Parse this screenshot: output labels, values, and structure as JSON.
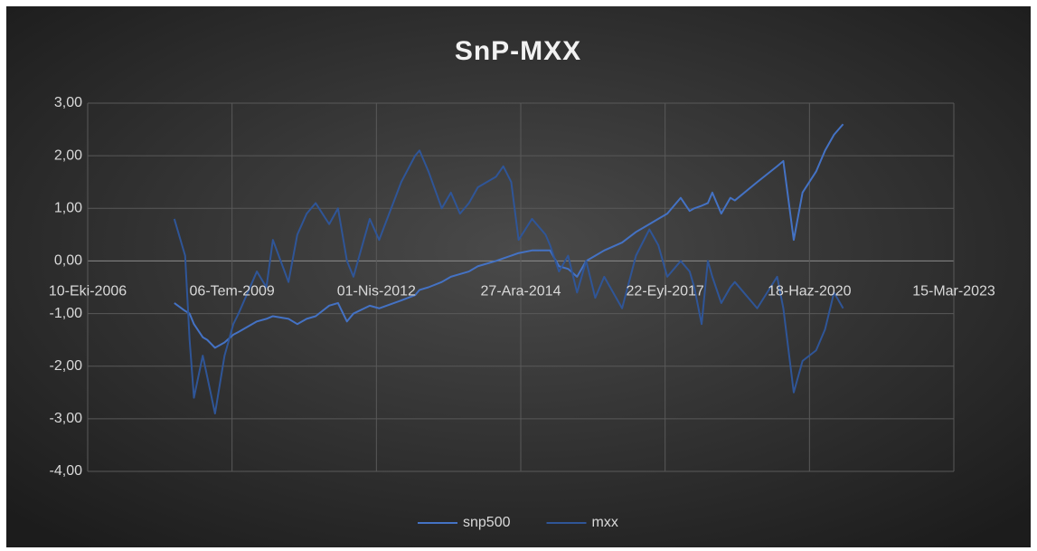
{
  "chart_data": {
    "type": "line",
    "title": "SnP-MXX",
    "x": [
      "2008-06-01",
      "2008-08-15",
      "2008-09-15",
      "2008-10-15",
      "2008-12-15",
      "2009-01-15",
      "2009-03-10",
      "2009-05-15",
      "2009-07-15",
      "2009-08-20",
      "2009-12-25",
      "2010-03-01",
      "2010-04-15",
      "2010-08-01",
      "2010-10-01",
      "2010-12-05",
      "2011-02-05",
      "2011-05-10",
      "2011-07-10",
      "2011-09-10",
      "2011-10-25",
      "2012-02-15",
      "2012-04-20",
      "2012-09-20",
      "2012-12-25",
      "2013-01-25",
      "2013-03-28",
      "2013-06-28",
      "2013-08-30",
      "2013-11-01",
      "2014-01-02",
      "2014-03-05",
      "2014-07-08",
      "2014-08-28",
      "2014-10-22",
      "2014-12-12",
      "2015-03-15",
      "2015-06-17",
      "2015-07-18",
      "2015-09-18",
      "2015-11-20",
      "2016-01-21",
      "2016-03-24",
      "2016-05-26",
      "2016-07-27",
      "2016-11-28",
      "2017-03-04",
      "2017-06-05",
      "2017-08-06",
      "2017-10-07",
      "2018-01-08",
      "2018-03-11",
      "2018-04-12",
      "2018-06-02",
      "2018-07-15",
      "2018-08-15",
      "2018-10-16",
      "2018-12-18",
      "2019-01-18",
      "2019-06-22",
      "2019-11-07",
      "2019-12-20",
      "2020-03-01",
      "2020-05-01",
      "2020-08-03",
      "2020-10-04",
      "2020-12-05",
      "2021-02-06"
    ],
    "series": [
      {
        "name": "snp500",
        "color": "#4472c4",
        "values": [
          -0.8,
          -0.95,
          -1.0,
          -1.2,
          -1.45,
          -1.5,
          -1.65,
          -1.55,
          -1.4,
          -1.35,
          -1.15,
          -1.1,
          -1.05,
          -1.1,
          -1.2,
          -1.1,
          -1.05,
          -0.85,
          -0.8,
          -1.15,
          -1.0,
          -0.85,
          -0.9,
          -0.75,
          -0.65,
          -0.55,
          -0.5,
          -0.4,
          -0.3,
          -0.25,
          -0.2,
          -0.1,
          0.0,
          0.05,
          0.1,
          0.15,
          0.2,
          0.2,
          0.2,
          -0.1,
          -0.15,
          -0.3,
          0.0,
          0.1,
          0.2,
          0.35,
          0.55,
          0.7,
          0.8,
          0.9,
          1.2,
          0.95,
          1.0,
          1.05,
          1.1,
          1.3,
          0.9,
          1.2,
          1.15,
          1.5,
          1.8,
          1.9,
          0.4,
          1.3,
          1.7,
          2.1,
          2.4,
          2.6
        ]
      },
      {
        "name": "mxx",
        "color": "#2f5597",
        "values": [
          0.8,
          0.1,
          -1.5,
          -2.6,
          -1.8,
          -2.2,
          -2.9,
          -1.8,
          -1.2,
          -1.0,
          -0.2,
          -0.5,
          0.4,
          -0.4,
          0.5,
          0.9,
          1.1,
          0.7,
          1.0,
          0.0,
          -0.3,
          0.8,
          0.4,
          1.5,
          2.0,
          2.1,
          1.7,
          1.0,
          1.3,
          0.9,
          1.1,
          1.4,
          1.6,
          1.8,
          1.5,
          0.4,
          0.8,
          0.5,
          0.3,
          -0.2,
          0.1,
          -0.6,
          0.0,
          -0.7,
          -0.3,
          -0.9,
          0.1,
          0.6,
          0.3,
          -0.3,
          0.0,
          -0.2,
          -0.5,
          -1.2,
          0.0,
          -0.3,
          -0.8,
          -0.5,
          -0.4,
          -0.9,
          -0.3,
          -0.9,
          -2.5,
          -1.9,
          -1.7,
          -1.3,
          -0.6,
          -0.9
        ]
      }
    ],
    "xlim": [
      "2006-10-10",
      "2023-03-15"
    ],
    "xticks": [
      {
        "value": "2006-10-10",
        "label": "10-Eki-2006"
      },
      {
        "value": "2009-07-06",
        "label": "06-Tem-2009"
      },
      {
        "value": "2012-04-01",
        "label": "01-Nis-2012"
      },
      {
        "value": "2014-12-27",
        "label": "27-Ara-2014"
      },
      {
        "value": "2017-09-22",
        "label": "22-Eyl-2017"
      },
      {
        "value": "2020-06-18",
        "label": "18-Haz-2020"
      },
      {
        "value": "2023-03-15",
        "label": "15-Mar-2023"
      }
    ],
    "ylim": [
      -4,
      3
    ],
    "yticks": [
      {
        "value": -4,
        "label": "-4,00"
      },
      {
        "value": -3,
        "label": "-3,00"
      },
      {
        "value": -2,
        "label": "-2,00"
      },
      {
        "value": -1,
        "label": "-1,00"
      },
      {
        "value": 0,
        "label": "0,00"
      },
      {
        "value": 1,
        "label": "1,00"
      },
      {
        "value": 2,
        "label": "2,00"
      },
      {
        "value": 3,
        "label": "3,00"
      }
    ],
    "grid": true,
    "legend": "bottom"
  }
}
